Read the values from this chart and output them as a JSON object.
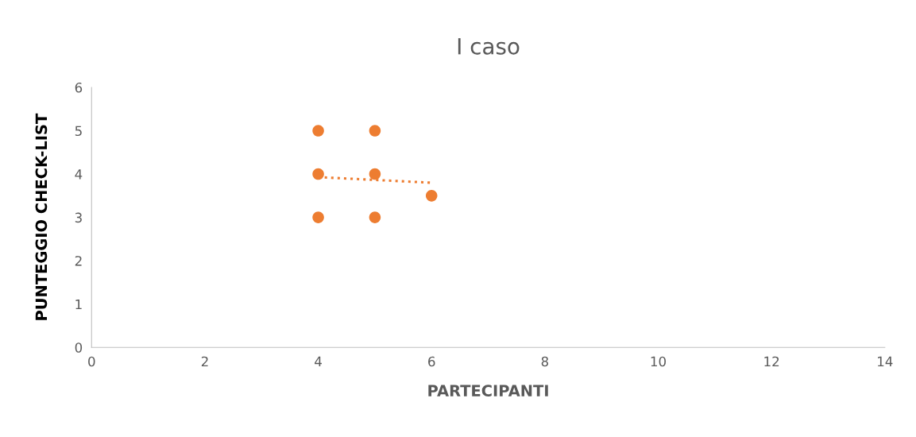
{
  "chart_data": {
    "type": "scatter",
    "title": "I caso",
    "xlabel": "PARTECIPANTI",
    "ylabel": "PUNTEGGIO CHECK-LIST",
    "xlim": [
      0,
      14
    ],
    "xticks": [
      0,
      2,
      4,
      6,
      8,
      10,
      12,
      14
    ],
    "ylim": [
      0,
      6
    ],
    "yticks": [
      0,
      1,
      2,
      3,
      4,
      5,
      6
    ],
    "grid": false,
    "series": [
      {
        "color": "#ed7d31",
        "marker": "circle",
        "x": [
          4,
          4,
          4,
          5,
          5,
          5,
          6
        ],
        "values": [
          5,
          4,
          3,
          5,
          4,
          3,
          3.5
        ]
      },
      {
        "type": "line",
        "color": "#ed7d31",
        "marker": "none",
        "line_style": "dotted",
        "x": [
          4,
          6
        ],
        "values": [
          3.93,
          3.8
        ]
      }
    ]
  }
}
